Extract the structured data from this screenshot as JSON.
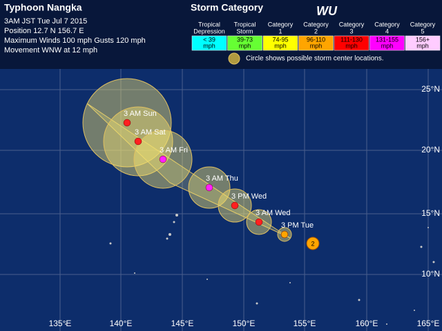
{
  "header": {
    "title": "Typhoon Nangka",
    "lines": [
      "3AM JST Tue Jul 7 2015",
      "Position 12.7 N 156.7 E",
      "Maximum Winds 100 mph  Gusts 120 mph",
      "Movement WNW at 12 mph"
    ]
  },
  "legend": {
    "title": "Storm Category",
    "logo": "WU",
    "categories": [
      {
        "name": [
          "Tropical",
          "Depression"
        ],
        "range": [
          "< 39",
          "mph"
        ]
      },
      {
        "name": [
          "Tropical",
          "Storm"
        ],
        "range": [
          "39-73",
          "mph"
        ]
      },
      {
        "name": [
          "Category",
          "1"
        ],
        "range": [
          "74-95",
          "mph"
        ]
      },
      {
        "name": [
          "Category",
          "2"
        ],
        "range": [
          "96-110",
          "mph"
        ]
      },
      {
        "name": [
          "Category",
          "3"
        ],
        "range": [
          "111-130",
          "mph"
        ]
      },
      {
        "name": [
          "Category",
          "4"
        ],
        "range": [
          "131-155",
          "mph"
        ]
      },
      {
        "name": [
          "Category",
          "5"
        ],
        "range": [
          "156+",
          "mph"
        ]
      }
    ],
    "note": "Circle shows possible storm center locations."
  },
  "map": {
    "latitudes": [
      "25°N",
      "20°N",
      "15°N",
      "10°N"
    ],
    "longitudes": [
      "135°E",
      "140°E",
      "145°E",
      "150°E",
      "155°E",
      "160°E",
      "165°E"
    ],
    "current_icon": "2",
    "track": [
      "3 PM Tue",
      "3 AM Wed",
      "3 PM Wed",
      "3 AM Thu",
      "3 AM Fri",
      "3 AM Sat",
      "3 AM Sun"
    ]
  }
}
